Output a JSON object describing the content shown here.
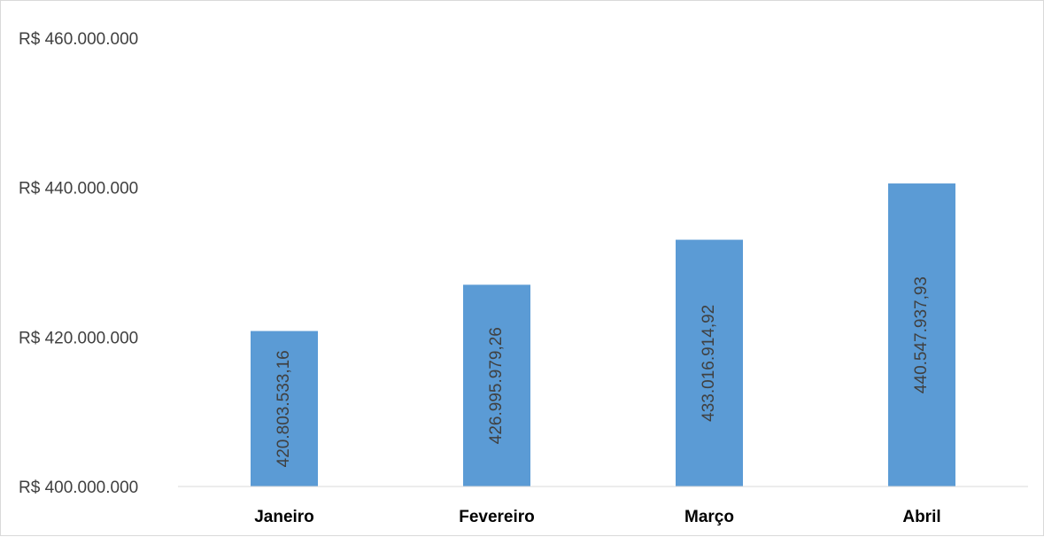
{
  "colors": {
    "bar": "#5b9bd5",
    "axis_line": "#d9d9d9",
    "tick_text": "#404040",
    "category_text": "#000000"
  },
  "chart_data": {
    "type": "bar",
    "title": "",
    "xlabel": "",
    "ylabel": "",
    "categories": [
      "Janeiro",
      "Fevereiro",
      "Março",
      "Abril"
    ],
    "values": [
      420803533.16,
      426995979.26,
      433016914.92,
      440547937.93
    ],
    "data_labels": [
      "420.803.533,16",
      "426.995.979,26",
      "433.016.914,92",
      "440.547.937,93"
    ],
    "ylim": [
      400000000,
      460000000
    ],
    "y_ticks": [
      400000000,
      420000000,
      440000000,
      460000000
    ],
    "y_tick_labels": [
      "R$ 400.000.000",
      "R$ 420.000.000",
      "R$ 440.000.000",
      "R$ 460.000.000"
    ],
    "grid": false,
    "legend": "none",
    "data_label_orientation": "vertical"
  }
}
